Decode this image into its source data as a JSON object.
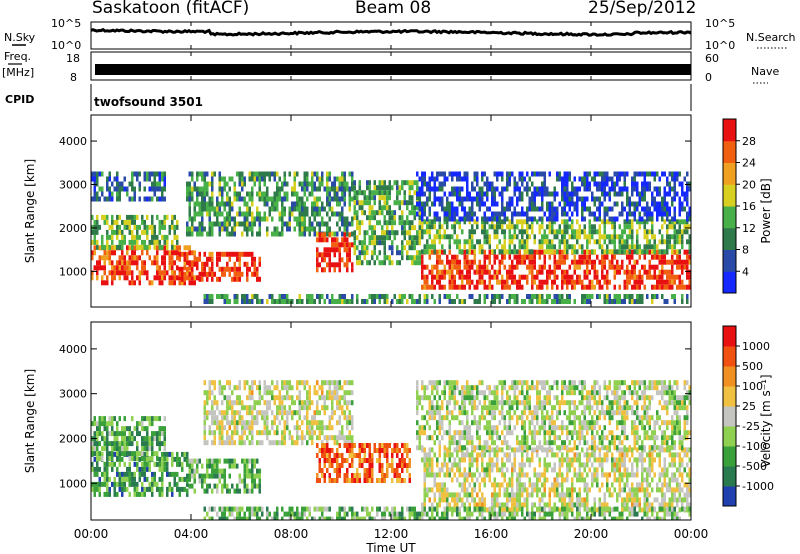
{
  "header": {
    "station": "Saskatoon (fitACF)",
    "beam": "Beam 08",
    "date": "25/Sep/2012"
  },
  "sky_panel": {
    "left_label": "N.Sky",
    "right_label": "N.Search",
    "left_ticks": [
      "10^5",
      "10^0"
    ],
    "right_ticks": [
      "10^5",
      "10^0"
    ]
  },
  "freq_panel": {
    "left_label_1": "Freq.",
    "left_label_2": "[MHz]",
    "right_label": "Nave",
    "left_ticks": [
      "18",
      "8"
    ],
    "right_ticks": [
      "60",
      "0"
    ]
  },
  "cpid": {
    "label": "CPID",
    "value": "twofsound 3501"
  },
  "x_axis": {
    "title": "Time UT",
    "ticks": [
      "00:00",
      "04:00",
      "08:00",
      "12:00",
      "16:00",
      "20:00",
      "00:00"
    ]
  },
  "chart_data": [
    {
      "type": "heatmap",
      "title": "Power",
      "ylabel": "Slant Range [km]",
      "ylim": [
        180,
        4600
      ],
      "yticks": [
        "1000",
        "2000",
        "3000",
        "4000"
      ],
      "colorbar_label": "Power [dB]",
      "colorbar_ticks": [
        "4",
        "8",
        "12",
        "16",
        "20",
        "24",
        "28"
      ],
      "colors": [
        "#1428ff",
        "#2a4aa8",
        "#2f7a4a",
        "#48b048",
        "#d8d020",
        "#f0a020",
        "#f06010",
        "#e81010"
      ],
      "regions": [
        {
          "t0": 0.0,
          "t1": 4.3,
          "r0": 700,
          "r1": 1600,
          "level": 0.85
        },
        {
          "t0": 0.0,
          "t1": 3.5,
          "r0": 1500,
          "r1": 2300,
          "level": 0.45
        },
        {
          "t0": 0.0,
          "t1": 3.0,
          "r0": 2700,
          "r1": 3300,
          "level": 0.25
        },
        {
          "t0": 3.5,
          "t1": 6.8,
          "r0": 850,
          "r1": 1450,
          "level": 0.92
        },
        {
          "t0": 3.8,
          "t1": 10.5,
          "r0": 1900,
          "r1": 3300,
          "level": 0.35
        },
        {
          "t0": 9.0,
          "t1": 10.5,
          "r0": 1000,
          "r1": 1900,
          "level": 0.92
        },
        {
          "t0": 10.5,
          "t1": 13.2,
          "r0": 1200,
          "r1": 3100,
          "level": 0.4
        },
        {
          "t0": 13.2,
          "t1": 24.0,
          "r0": 600,
          "r1": 1500,
          "level": 0.9
        },
        {
          "t0": 13.2,
          "t1": 24.0,
          "r0": 1500,
          "r1": 2200,
          "level": 0.45
        },
        {
          "t0": 13.0,
          "t1": 24.0,
          "r0": 2200,
          "r1": 3300,
          "level": 0.15
        },
        {
          "t0": 4.5,
          "t1": 24.0,
          "r0": 250,
          "r1": 480,
          "level": 0.35
        }
      ]
    },
    {
      "type": "heatmap",
      "title": "Velocity",
      "ylabel": "Slant Range [km]",
      "ylim": [
        180,
        4600
      ],
      "yticks": [
        "1000",
        "2000",
        "3000",
        "4000"
      ],
      "colorbar_label": "Velocity [m s⁻¹]",
      "colorbar_ticks": [
        "1000",
        "500",
        "100",
        "25",
        "-25",
        "-100",
        "-500",
        "-1000"
      ],
      "colors": [
        "#2040b0",
        "#2a7a50",
        "#3aa03a",
        "#90d050",
        "#c4c4c0",
        "#f0c040",
        "#f09020",
        "#f05010",
        "#e81010"
      ],
      "regions": [
        {
          "t0": 0.0,
          "t1": 4.0,
          "r0": 700,
          "r1": 1700,
          "level": 0.25
        },
        {
          "t0": 0.0,
          "t1": 3.0,
          "r0": 1600,
          "r1": 2500,
          "level": 0.3
        },
        {
          "t0": 3.8,
          "t1": 6.8,
          "r0": 850,
          "r1": 1550,
          "level": 0.3
        },
        {
          "t0": 4.5,
          "t1": 10.5,
          "r0": 1900,
          "r1": 3300,
          "level": 0.5
        },
        {
          "t0": 9.0,
          "t1": 12.8,
          "r0": 1100,
          "r1": 1900,
          "level": 0.8
        },
        {
          "t0": 13.2,
          "t1": 24.0,
          "r0": 450,
          "r1": 1800,
          "level": 0.5
        },
        {
          "t0": 13.0,
          "t1": 24.0,
          "r0": 1800,
          "r1": 3300,
          "level": 0.45
        },
        {
          "t0": 4.5,
          "t1": 24.0,
          "r0": 250,
          "r1": 480,
          "level": 0.35
        }
      ]
    }
  ]
}
